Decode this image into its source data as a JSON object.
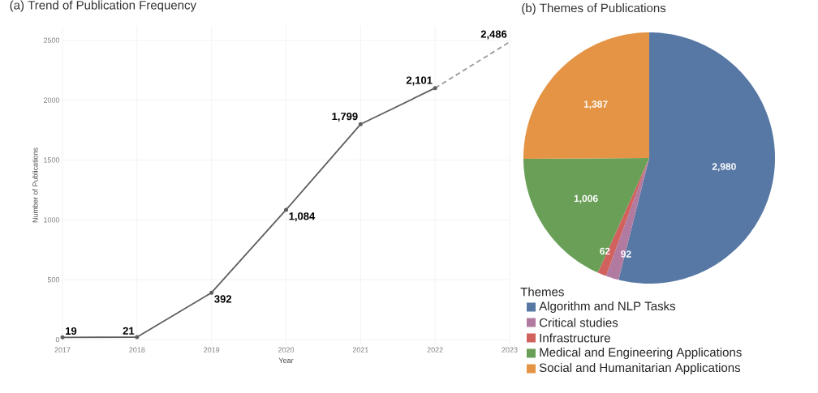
{
  "chart_data": [
    {
      "type": "line",
      "title": "(a) Trend of Publication Frequency",
      "xlabel": "Year",
      "ylabel": "Number of Publications",
      "xlim": [
        2017,
        2023
      ],
      "ylim": [
        -40,
        2620
      ],
      "xticks": [
        2017,
        2018,
        2019,
        2020,
        2021,
        2022,
        2023
      ],
      "yticks": [
        0,
        500,
        1000,
        1500,
        2000,
        2500
      ],
      "grid": true,
      "marker": "circle",
      "line_style": "solid",
      "series": [
        {
          "color": "#5f5f5f",
          "x": [
            2017,
            2018,
            2019,
            2020,
            2021,
            2022
          ],
          "values": [
            19,
            21,
            392,
            1084,
            1799,
            2101
          ],
          "value_labels": [
            "19",
            "21",
            "392",
            "1,084",
            "1,799",
            "2,101"
          ]
        },
        {
          "color": "#9a9a9a",
          "line_style": "dashed",
          "marker": "none",
          "x": [
            2022,
            2023
          ],
          "values": [
            2101,
            2486
          ],
          "value_labels": [
            null,
            "2,486"
          ]
        }
      ]
    },
    {
      "type": "pie",
      "title": "(b) Themes of Publications",
      "legend_title": "Themes",
      "legend": "bottom",
      "categories": [
        "Algorithm and NLP Tasks",
        "Critical studies",
        "Infrastructure",
        "Medical and Engineering Applications",
        "Social and Humanitarian Applications"
      ],
      "values": [
        2980,
        92,
        62,
        1006,
        1387
      ],
      "value_labels": [
        "2,980",
        "92",
        "62",
        "1,006",
        "1,387"
      ],
      "colors": [
        "#5778a4",
        "#b07aa1",
        "#d1615d",
        "#6a9f58",
        "#e49444"
      ]
    }
  ]
}
